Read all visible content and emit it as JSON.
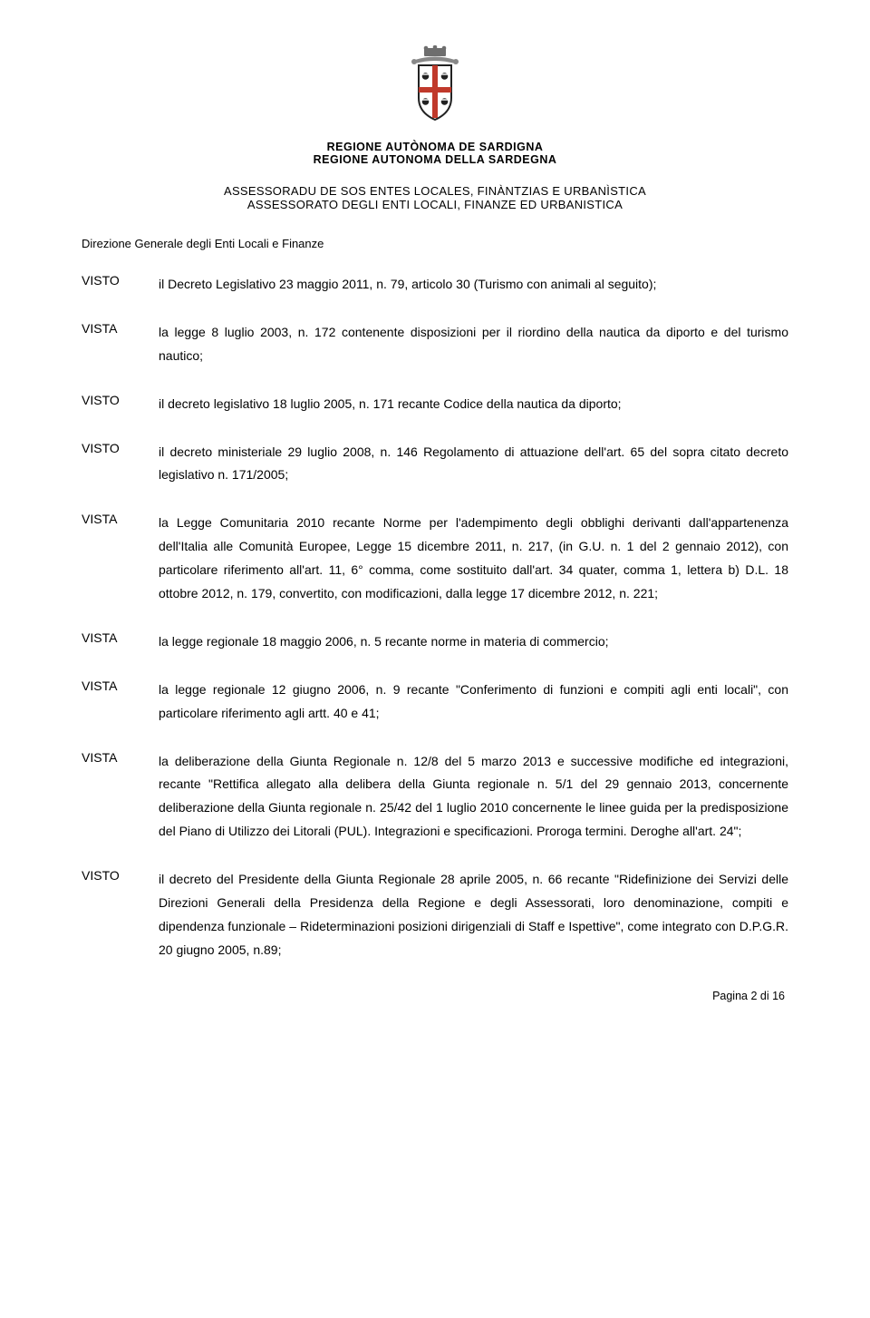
{
  "crest": {
    "shield_fill": "#ffffff",
    "shield_border": "#222222",
    "cross_color": "#c0392b",
    "head_color": "#222222",
    "scroll_color": "#888888",
    "crown_color": "#6e6e6e"
  },
  "org": {
    "line1": "REGIONE AUTÒNOMA DE SARDIGNA",
    "line2": "REGIONE AUTONOMA DELLA SARDEGNA"
  },
  "assessor": {
    "line1": "ASSESSORADU DE SOS ENTES LOCALES, FINÀNTZIAS E URBANÌSTICA",
    "line2": "ASSESSORATO DEGLI ENTI LOCALI, FINANZE ED URBANISTICA"
  },
  "directorate": "Direzione Generale degli Enti Locali e Finanze",
  "items": [
    {
      "label": "VISTO",
      "text": "il Decreto Legislativo 23 maggio 2011, n. 79, articolo 30 (Turismo con animali al seguito);"
    },
    {
      "label": "VISTA",
      "text": "la legge 8 luglio 2003, n. 172 contenente disposizioni per il riordino della nautica da diporto e del turismo nautico;"
    },
    {
      "label": "VISTO",
      "text": "il decreto legislativo 18 luglio 2005, n. 171 recante Codice della nautica da diporto;"
    },
    {
      "label": "VISTO",
      "text": "il decreto ministeriale 29 luglio 2008, n. 146 Regolamento di attuazione dell'art. 65 del sopra citato decreto legislativo n. 171/2005;"
    },
    {
      "label": "VISTA",
      "text": "la Legge Comunitaria 2010 recante Norme per l'adempimento degli obblighi derivanti dall'appartenenza dell'Italia alle Comunità Europee, Legge 15 dicembre 2011, n. 217, (in G.U. n. 1 del 2 gennaio 2012), con particolare riferimento all'art. 11, 6° comma, come sostituito dall'art. 34 quater, comma 1, lettera b) D.L. 18 ottobre 2012, n. 179, convertito, con modificazioni, dalla legge 17 dicembre 2012, n. 221;"
    },
    {
      "label": "VISTA",
      "text": "la legge regionale 18 maggio 2006, n. 5 recante norme in materia di commercio;"
    },
    {
      "label": "VISTA",
      "text": "la legge regionale 12 giugno 2006, n. 9 recante \"Conferimento di funzioni e compiti agli enti locali\", con particolare riferimento agli artt. 40 e 41;"
    },
    {
      "label": "VISTA",
      "text": "la deliberazione della Giunta Regionale n. 12/8 del 5 marzo 2013 e successive modifiche ed integrazioni, recante \"Rettifica allegato alla delibera della Giunta regionale n. 5/1 del 29 gennaio 2013, concernente deliberazione della Giunta regionale n. 25/42 del 1 luglio 2010 concernente le linee guida per la predisposizione del Piano di Utilizzo dei Litorali (PUL). Integrazioni e specificazioni. Proroga termini. Deroghe all'art. 24\";"
    },
    {
      "label": "VISTO",
      "text": "il decreto del Presidente della Giunta Regionale 28 aprile 2005, n. 66 recante \"Ridefinizione dei Servizi delle Direzioni Generali della Presidenza della Regione e degli Assessorati, loro denominazione, compiti e dipendenza funzionale – Rideterminazioni posizioni dirigenziali di Staff e Ispettive\", come integrato con D.P.G.R. 20 giugno 2005, n.89;"
    }
  ],
  "footer": "Pagina 2 di 16"
}
